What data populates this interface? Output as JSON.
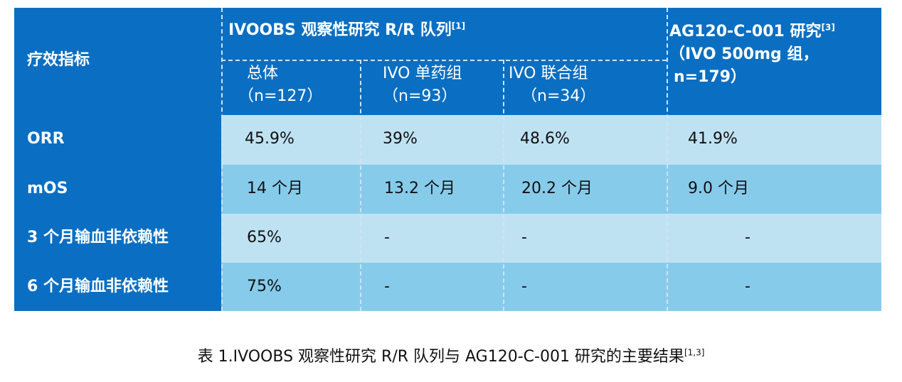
{
  "table": {
    "header": {
      "metric": "疗效指标",
      "ivoobs_group": "IVOOBS 观察性研究 R/R 队列",
      "ivoobs_ref": "[1]",
      "ag_title": "AG120-C-001 研究",
      "ag_ref": "[3]",
      "ag_sub1": "（IVO 500mg 组，",
      "ag_sub2": "n=179）",
      "sub1_name": "总体",
      "sub1_n": "（n=127）",
      "sub2_name": "IVO 单药组",
      "sub2_n": "（n=93）",
      "sub3_name": "IVO 联合组",
      "sub3_n": "（n=34）"
    },
    "rows": [
      {
        "label": "ORR",
        "overall": "45.9%",
        "mono": "39%",
        "combo": "48.6%",
        "ag": "41.9%"
      },
      {
        "label": "mOS",
        "overall": "14 个月",
        "mono": "13.2 个月",
        "combo": "20.2 个月",
        "ag": "9.0 个月"
      },
      {
        "label": "3 个月输血非依赖性",
        "overall": "65%",
        "mono": "-",
        "combo": "-",
        "ag": "-"
      },
      {
        "label": "6 个月输血非依赖性",
        "overall": "75%",
        "mono": "-",
        "combo": "-",
        "ag": "-"
      }
    ]
  },
  "caption": {
    "text": "表 1.IVOOBS 观察性研究 R/R 队列与 AG120-C-001 研究的主要结果",
    "ref": "[1,3]"
  }
}
